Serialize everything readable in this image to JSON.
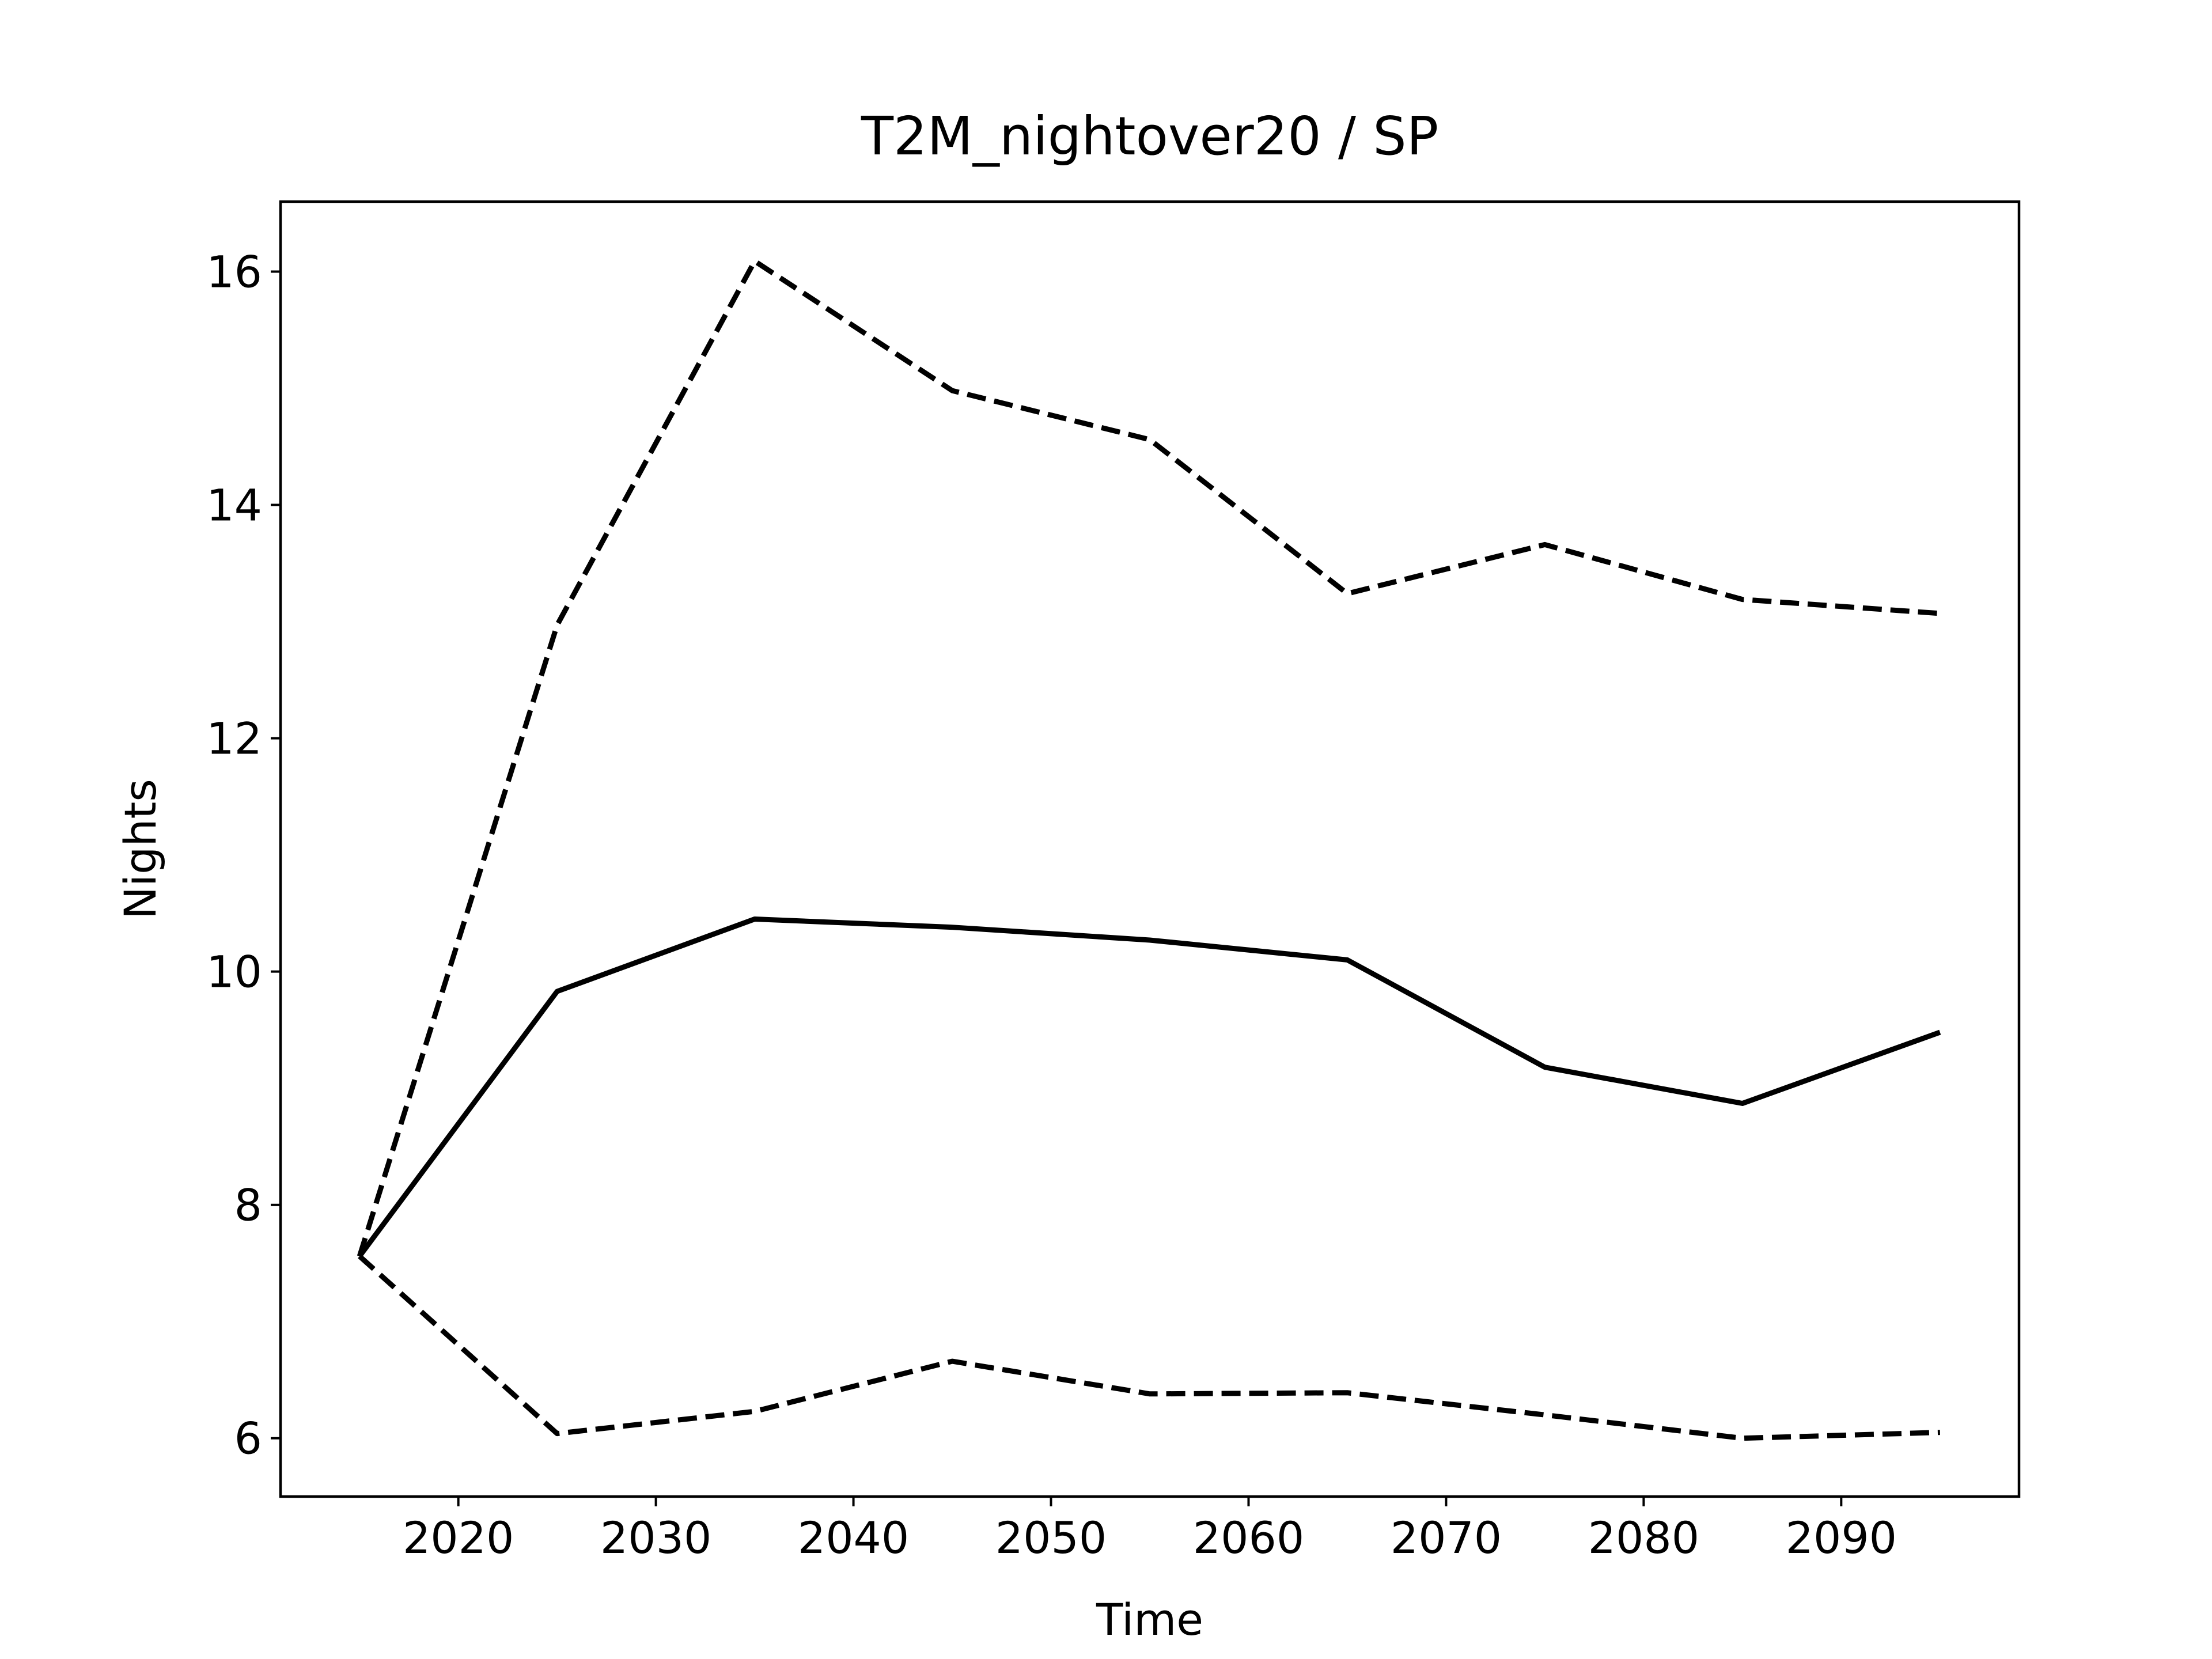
{
  "chart_data": {
    "type": "line",
    "title": "T2M_nightover20 / SP",
    "x_label": "Time",
    "y_label": "Nights",
    "x": [
      2015,
      2025,
      2035,
      2045,
      2055,
      2065,
      2075,
      2085,
      2095
    ],
    "series": [
      {
        "color": "#000000",
        "dash": false,
        "values": [
          7.56,
          9.83,
          10.45,
          10.38,
          10.27,
          10.1,
          9.18,
          8.87,
          9.48
        ]
      },
      {
        "color": "#000000",
        "dash": true,
        "values": [
          7.56,
          12.97,
          16.09,
          14.98,
          14.56,
          13.24,
          13.66,
          13.19,
          13.07
        ]
      },
      {
        "color": "#000000",
        "dash": true,
        "values": [
          7.56,
          6.04,
          6.23,
          6.66,
          6.38,
          6.39,
          6.2,
          6.0,
          6.05
        ]
      }
    ],
    "xlim": [
      2011,
      2099
    ],
    "xticks": [
      2020,
      2030,
      2040,
      2050,
      2060,
      2070,
      2080,
      2090
    ],
    "ylim": [
      5.5,
      16.6
    ],
    "yticks": [
      6,
      8,
      10,
      12,
      14,
      16
    ],
    "grid": false
  }
}
